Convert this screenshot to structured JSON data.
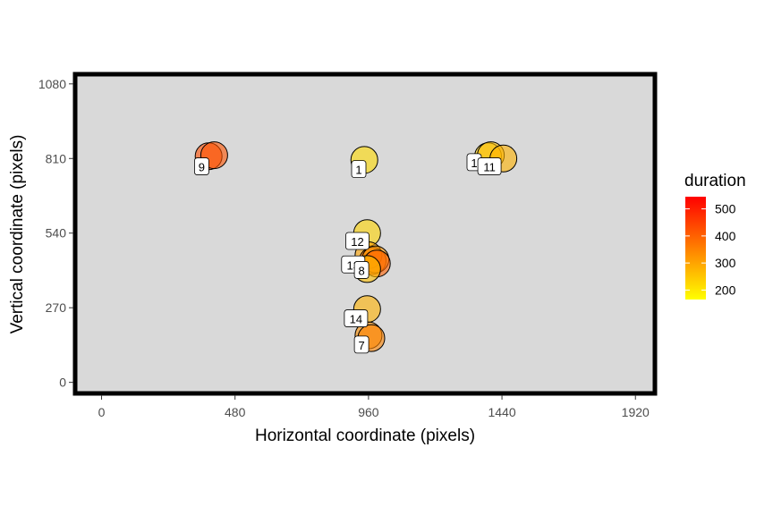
{
  "chart_data": {
    "type": "scatter",
    "xlabel": "Horizontal coordinate (pixels)",
    "ylabel": "Vertical coordinate (pixels)",
    "xlim": [
      -95,
      1990
    ],
    "ylim": [
      -40,
      1115
    ],
    "x_ticks": [
      0,
      480,
      960,
      1440,
      1920
    ],
    "y_ticks": [
      0,
      270,
      540,
      810,
      1080
    ],
    "grid": false,
    "panel_background": "#d9d9d9",
    "panel_border": "#000000",
    "color_legend": {
      "title": "duration",
      "position": "right",
      "ticks": [
        200,
        300,
        400,
        500
      ],
      "range": [
        165,
        545
      ],
      "low_color": "#ffff00",
      "high_color": "#ff0000"
    },
    "points": [
      {
        "x": 385,
        "y": 818,
        "duration": 430,
        "label": ""
      },
      {
        "x": 405,
        "y": 822,
        "duration": 420,
        "label": ""
      },
      {
        "x": 945,
        "y": 805,
        "duration": 220,
        "label": "1"
      },
      {
        "x": 1390,
        "y": 818,
        "duration": 240,
        "label": ""
      },
      {
        "x": 1400,
        "y": 822,
        "duration": 260,
        "label": ""
      },
      {
        "x": 1445,
        "y": 810,
        "duration": 280,
        "label": ""
      },
      {
        "x": 955,
        "y": 540,
        "duration": 230,
        "label": "12"
      },
      {
        "x": 960,
        "y": 460,
        "duration": 300,
        "label": ""
      },
      {
        "x": 975,
        "y": 440,
        "duration": 380,
        "label": ""
      },
      {
        "x": 985,
        "y": 445,
        "duration": 320,
        "label": ""
      },
      {
        "x": 990,
        "y": 430,
        "duration": 400,
        "label": ""
      },
      {
        "x": 955,
        "y": 410,
        "duration": 260,
        "label": "13"
      },
      {
        "x": 955,
        "y": 265,
        "duration": 280,
        "label": "14"
      },
      {
        "x": 960,
        "y": 170,
        "duration": 330,
        "label": ""
      },
      {
        "x": 970,
        "y": 160,
        "duration": 350,
        "label": "7"
      }
    ],
    "labels": [
      {
        "text": "9",
        "x": 360,
        "y": 780
      },
      {
        "text": "1",
        "x": 925,
        "y": 770
      },
      {
        "text": "1",
        "x": 1340,
        "y": 795
      },
      {
        "text": "11",
        "x": 1395,
        "y": 780
      },
      {
        "text": "12",
        "x": 920,
        "y": 510
      },
      {
        "text": "13",
        "x": 905,
        "y": 425
      },
      {
        "text": "8",
        "x": 935,
        "y": 405
      },
      {
        "text": "14",
        "x": 915,
        "y": 230
      },
      {
        "text": "7",
        "x": 935,
        "y": 135
      }
    ]
  }
}
